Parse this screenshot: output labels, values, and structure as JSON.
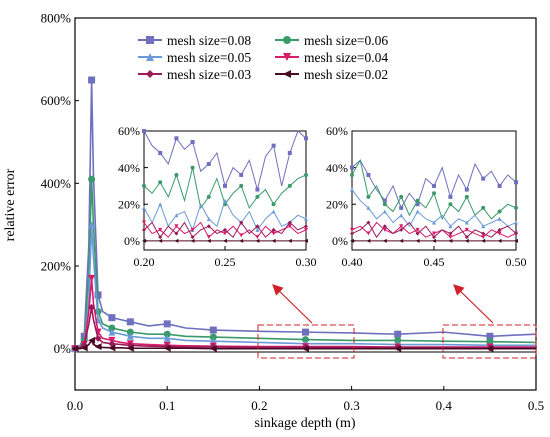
{
  "chart_data": [
    {
      "type": "line",
      "role": "main",
      "xlabel": "sinkage depth (m)",
      "ylabel": "relative error",
      "xlim": [
        0.0,
        0.5
      ],
      "ylim": [
        -100,
        800
      ],
      "x_ticks": [
        "0.0",
        "0.1",
        "0.2",
        "0.3",
        "0.4",
        "0.5"
      ],
      "y_ticks": [
        "0%",
        "200%",
        "400%",
        "600%",
        "800%"
      ],
      "x_tick_values": [
        0.0,
        0.1,
        0.2,
        0.3,
        0.4,
        0.5
      ],
      "y_tick_values": [
        0,
        200,
        400,
        600,
        800
      ],
      "legend": "top-center, two columns",
      "x": [
        0.0,
        0.005,
        0.01,
        0.015,
        0.018,
        0.02,
        0.025,
        0.03,
        0.04,
        0.05,
        0.06,
        0.08,
        0.1,
        0.12,
        0.15,
        0.2,
        0.25,
        0.3,
        0.35,
        0.4,
        0.45,
        0.5
      ],
      "series": [
        {
          "name": "mesh size=0.08",
          "color": "#6f6fc0",
          "marker": "square",
          "values": [
            0,
            5,
            30,
            250,
            650,
            420,
            130,
            90,
            75,
            70,
            65,
            55,
            60,
            50,
            45,
            42,
            40,
            38,
            35,
            40,
            30,
            35
          ]
        },
        {
          "name": "mesh size=0.06",
          "color": "#3a9a6a",
          "marker": "circle",
          "values": [
            0,
            3,
            20,
            180,
            410,
            300,
            90,
            60,
            50,
            45,
            40,
            35,
            35,
            30,
            28,
            25,
            22,
            20,
            20,
            18,
            17,
            15
          ]
        },
        {
          "name": "mesh size=0.05",
          "color": "#6a9ad8",
          "marker": "triangle-up",
          "values": [
            0,
            2,
            15,
            120,
            300,
            220,
            70,
            50,
            40,
            35,
            30,
            25,
            25,
            20,
            18,
            15,
            12,
            12,
            10,
            10,
            8,
            8
          ]
        },
        {
          "name": "mesh size=0.04",
          "color": "#d81b6a",
          "marker": "triangle-down",
          "values": [
            0,
            2,
            10,
            90,
            170,
            110,
            40,
            25,
            20,
            15,
            12,
            10,
            8,
            7,
            6,
            5,
            5,
            5,
            4,
            4,
            4,
            4
          ]
        },
        {
          "name": "mesh size=0.03",
          "color": "#9a1a5a",
          "marker": "diamond",
          "values": [
            0,
            1,
            8,
            60,
            100,
            70,
            25,
            15,
            12,
            10,
            8,
            6,
            5,
            4,
            4,
            3,
            3,
            3,
            3,
            3,
            2,
            2
          ]
        },
        {
          "name": "mesh size=0.02",
          "color": "#4a0a24",
          "marker": "triangle-left",
          "values": [
            0,
            0,
            2,
            10,
            20,
            10,
            5,
            3,
            2,
            2,
            1,
            1,
            1,
            1,
            0,
            0,
            0,
            0,
            0,
            0,
            0,
            0
          ]
        }
      ]
    },
    {
      "type": "line",
      "role": "inset-left",
      "xlim": [
        0.2,
        0.3
      ],
      "ylim": [
        -5,
        60
      ],
      "x_ticks": [
        "0.20",
        "0.25",
        "0.30"
      ],
      "y_ticks": [
        "0%",
        "20%",
        "40%",
        "60%"
      ],
      "x_tick_values": [
        0.2,
        0.25,
        0.3
      ],
      "y_tick_values": [
        0,
        20,
        40,
        60
      ],
      "x": [
        0.2,
        0.205,
        0.21,
        0.215,
        0.22,
        0.225,
        0.23,
        0.235,
        0.24,
        0.245,
        0.25,
        0.255,
        0.26,
        0.265,
        0.27,
        0.275,
        0.28,
        0.285,
        0.29,
        0.295,
        0.3
      ],
      "series": [
        {
          "values": [
            60,
            52,
            48,
            42,
            56,
            50,
            54,
            38,
            42,
            48,
            30,
            40,
            36,
            44,
            28,
            46,
            52,
            30,
            48,
            60,
            56
          ]
        },
        {
          "values": [
            30,
            26,
            32,
            24,
            36,
            22,
            40,
            18,
            24,
            34,
            20,
            26,
            30,
            18,
            24,
            28,
            20,
            26,
            30,
            34,
            36
          ]
        },
        {
          "values": [
            18,
            10,
            20,
            8,
            14,
            16,
            6,
            20,
            12,
            8,
            22,
            14,
            10,
            16,
            6,
            12,
            16,
            8,
            10,
            14,
            12
          ]
        },
        {
          "values": [
            10,
            4,
            6,
            2,
            8,
            4,
            6,
            10,
            2,
            6,
            4,
            8,
            3,
            6,
            2,
            8,
            4,
            6,
            8,
            4,
            6
          ]
        },
        {
          "values": [
            6,
            10,
            2,
            8,
            4,
            10,
            2,
            6,
            8,
            4,
            6,
            2,
            10,
            4,
            8,
            2,
            6,
            4,
            10,
            6,
            8
          ]
        },
        {
          "values": [
            0,
            0,
            0,
            0,
            0,
            0,
            0,
            0,
            0,
            0,
            0,
            0,
            0,
            0,
            0,
            0,
            0,
            0,
            0,
            0,
            0
          ]
        }
      ]
    },
    {
      "type": "line",
      "role": "inset-right",
      "xlim": [
        0.4,
        0.5
      ],
      "ylim": [
        -5,
        60
      ],
      "x_ticks": [
        "0.40",
        "0.45",
        "0.50"
      ],
      "y_ticks": [
        "0%",
        "20%",
        "40%",
        "60%"
      ],
      "x_tick_values": [
        0.4,
        0.45,
        0.5
      ],
      "y_tick_values": [
        0,
        20,
        40,
        60
      ],
      "x": [
        0.4,
        0.405,
        0.41,
        0.415,
        0.42,
        0.425,
        0.43,
        0.435,
        0.44,
        0.445,
        0.45,
        0.455,
        0.46,
        0.465,
        0.47,
        0.475,
        0.48,
        0.485,
        0.49,
        0.495,
        0.5
      ],
      "series": [
        {
          "values": [
            40,
            44,
            36,
            28,
            22,
            30,
            18,
            26,
            20,
            34,
            30,
            40,
            24,
            36,
            28,
            42,
            34,
            38,
            30,
            36,
            32
          ]
        },
        {
          "values": [
            36,
            44,
            24,
            30,
            20,
            16,
            24,
            14,
            22,
            18,
            26,
            12,
            20,
            16,
            24,
            14,
            18,
            12,
            16,
            20,
            18
          ]
        },
        {
          "values": [
            28,
            22,
            18,
            12,
            16,
            10,
            14,
            8,
            16,
            12,
            10,
            14,
            8,
            12,
            10,
            14,
            8,
            10,
            12,
            8,
            10
          ]
        },
        {
          "values": [
            6,
            8,
            4,
            10,
            6,
            4,
            8,
            4,
            6,
            2,
            4,
            6,
            2,
            4,
            6,
            4,
            2,
            6,
            4,
            2,
            4
          ]
        },
        {
          "values": [
            4,
            6,
            10,
            2,
            8,
            4,
            6,
            10,
            4,
            8,
            2,
            6,
            4,
            8,
            2,
            6,
            4,
            2,
            6,
            8,
            4
          ]
        },
        {
          "values": [
            0,
            0,
            0,
            0,
            0,
            0,
            0,
            0,
            0,
            0,
            0,
            0,
            0,
            0,
            0,
            0,
            0,
            0,
            0,
            0,
            0
          ]
        }
      ]
    }
  ],
  "annotation_color": "#d0202a"
}
